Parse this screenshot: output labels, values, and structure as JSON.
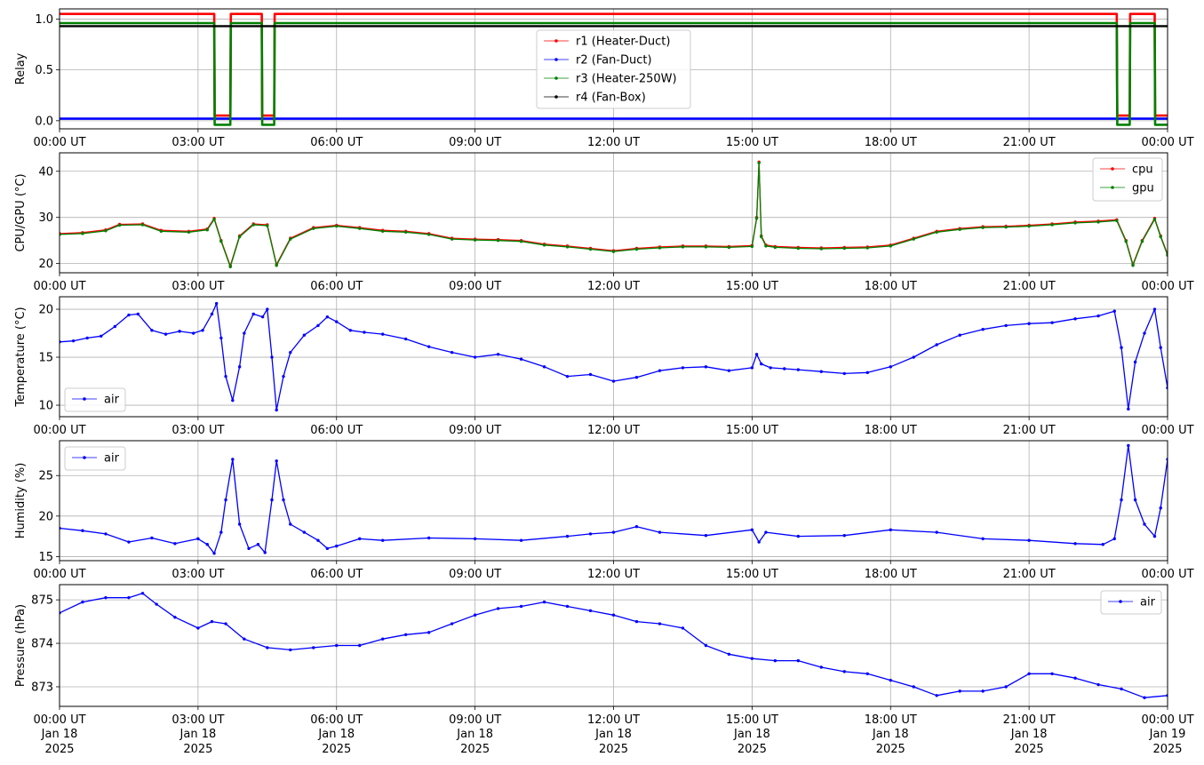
{
  "x_ticks": [
    "00:00 UT",
    "03:00 UT",
    "06:00 UT",
    "09:00 UT",
    "12:00 UT",
    "15:00 UT",
    "18:00 UT",
    "21:00 UT",
    "00:00 UT"
  ],
  "x_date_labels": [
    "Jan 18",
    "Jan 18",
    "Jan 18",
    "Jan 18",
    "Jan 18",
    "Jan 18",
    "Jan 18",
    "Jan 18",
    "Jan 19"
  ],
  "x_year_labels": [
    "2025",
    "2025",
    "2025",
    "2025",
    "2025",
    "2025",
    "2025",
    "2025",
    "2025"
  ],
  "chart_data": [
    {
      "type": "line",
      "ylabel": "Relay",
      "ylim": [
        -0.08,
        1.1
      ],
      "yticks": [
        0.0,
        0.5,
        1.0
      ],
      "ytick_labels": [
        "0.0",
        "0.5",
        "1.0"
      ],
      "xlim": [
        0,
        24
      ],
      "grid": true,
      "legend": "upper-center",
      "series": [
        {
          "name": "r1 (Heater-Duct)",
          "color": "#ff0000",
          "x": [
            0,
            3.35,
            3.36,
            3.7,
            3.71,
            4.38,
            4.39,
            4.65,
            4.66,
            22.9,
            22.91,
            23.18,
            23.19,
            23.72,
            23.73,
            24
          ],
          "y": [
            1.05,
            1.05,
            0.05,
            0.05,
            1.05,
            1.05,
            0.05,
            0.05,
            1.05,
            1.05,
            0.05,
            0.05,
            1.05,
            1.05,
            0.05,
            0.05
          ]
        },
        {
          "name": "r2 (Fan-Duct)",
          "color": "#0000ff",
          "x": [
            0,
            24
          ],
          "y": [
            0.02,
            0.02
          ]
        },
        {
          "name": "r3 (Heater-250W)",
          "color": "#008000",
          "x": [
            0,
            3.35,
            3.36,
            3.7,
            3.71,
            4.38,
            4.39,
            4.65,
            4.66,
            22.9,
            22.91,
            23.18,
            23.19,
            23.72,
            23.73,
            24
          ],
          "y": [
            0.96,
            0.96,
            -0.04,
            -0.04,
            0.96,
            0.96,
            -0.04,
            -0.04,
            0.96,
            0.96,
            -0.04,
            -0.04,
            0.96,
            0.96,
            -0.04,
            -0.04
          ]
        },
        {
          "name": "r4 (Fan-Box)",
          "color": "#000000",
          "x": [
            0,
            24
          ],
          "y": [
            0.93,
            0.93
          ]
        }
      ]
    },
    {
      "type": "line",
      "ylabel": "CPU/GPU (°C)",
      "ylim": [
        18,
        44
      ],
      "yticks": [
        20,
        30,
        40
      ],
      "ytick_labels": [
        "20",
        "30",
        "40"
      ],
      "xlim": [
        0,
        24
      ],
      "grid": true,
      "legend": "upper-right",
      "series": [
        {
          "name": "cpu",
          "color": "#ff0000",
          "x": [
            0,
            0.5,
            1.0,
            1.3,
            1.8,
            2.2,
            2.8,
            3.2,
            3.35,
            3.5,
            3.7,
            3.9,
            4.2,
            4.5,
            4.7,
            5.0,
            5.5,
            6.0,
            6.5,
            7.0,
            7.5,
            8.0,
            8.5,
            9.0,
            9.5,
            10.0,
            10.5,
            11.0,
            11.5,
            12.0,
            12.5,
            13.0,
            13.5,
            14.0,
            14.5,
            15.0,
            15.1,
            15.15,
            15.2,
            15.3,
            15.5,
            16.0,
            16.5,
            17.0,
            17.5,
            18.0,
            18.5,
            19.0,
            19.5,
            20.0,
            20.5,
            21.0,
            21.5,
            22.0,
            22.5,
            22.9,
            23.1,
            23.25,
            23.45,
            23.72,
            23.85,
            24
          ],
          "y": [
            26.5,
            26.7,
            27.3,
            28.5,
            28.6,
            27.2,
            27.0,
            27.5,
            29.8,
            25.0,
            19.5,
            26.0,
            28.6,
            28.4,
            19.8,
            25.5,
            27.8,
            28.3,
            27.8,
            27.2,
            27.0,
            26.5,
            25.5,
            25.3,
            25.2,
            25.0,
            24.2,
            23.8,
            23.3,
            22.8,
            23.3,
            23.6,
            23.8,
            23.8,
            23.7,
            23.9,
            30.0,
            42.0,
            26.0,
            24.0,
            23.7,
            23.5,
            23.4,
            23.5,
            23.6,
            24.0,
            25.5,
            27.0,
            27.6,
            28.0,
            28.1,
            28.3,
            28.6,
            29.0,
            29.2,
            29.5,
            25.0,
            19.8,
            25.0,
            29.8,
            26.0,
            22.0
          ]
        },
        {
          "name": "gpu",
          "color": "#008000",
          "x": [
            0,
            0.5,
            1.0,
            1.3,
            1.8,
            2.2,
            2.8,
            3.2,
            3.35,
            3.5,
            3.7,
            3.9,
            4.2,
            4.5,
            4.7,
            5.0,
            5.5,
            6.0,
            6.5,
            7.0,
            7.5,
            8.0,
            8.5,
            9.0,
            9.5,
            10.0,
            10.5,
            11.0,
            11.5,
            12.0,
            12.5,
            13.0,
            13.5,
            14.0,
            14.5,
            15.0,
            15.1,
            15.15,
            15.2,
            15.3,
            15.5,
            16.0,
            16.5,
            17.0,
            17.5,
            18.0,
            18.5,
            19.0,
            19.5,
            20.0,
            20.5,
            21.0,
            21.5,
            22.0,
            22.5,
            22.9,
            23.1,
            23.25,
            23.45,
            23.72,
            23.85,
            24
          ],
          "y": [
            26.3,
            26.5,
            27.1,
            28.3,
            28.4,
            27.0,
            26.8,
            27.3,
            29.6,
            24.8,
            19.3,
            25.8,
            28.4,
            28.2,
            19.6,
            25.3,
            27.6,
            28.1,
            27.6,
            27.0,
            26.8,
            26.3,
            25.3,
            25.1,
            25.0,
            24.8,
            24.0,
            23.6,
            23.1,
            22.6,
            23.1,
            23.4,
            23.6,
            23.6,
            23.5,
            23.7,
            29.8,
            41.8,
            25.8,
            23.8,
            23.5,
            23.3,
            23.2,
            23.3,
            23.4,
            23.8,
            25.3,
            26.8,
            27.4,
            27.8,
            27.9,
            28.1,
            28.4,
            28.8,
            29.0,
            29.3,
            24.8,
            19.6,
            24.8,
            29.6,
            25.8,
            21.8
          ]
        }
      ]
    },
    {
      "type": "line",
      "ylabel": "Temperature (°C)",
      "ylim": [
        8.8,
        21.3
      ],
      "yticks": [
        10,
        15,
        20
      ],
      "ytick_labels": [
        "10",
        "15",
        "20"
      ],
      "xlim": [
        0,
        24
      ],
      "grid": true,
      "legend": "lower-left",
      "series": [
        {
          "name": "air",
          "color": "#0000ff",
          "x": [
            0,
            0.3,
            0.6,
            0.9,
            1.2,
            1.5,
            1.7,
            2.0,
            2.3,
            2.6,
            2.9,
            3.1,
            3.3,
            3.4,
            3.5,
            3.6,
            3.75,
            3.9,
            4.0,
            4.2,
            4.4,
            4.5,
            4.6,
            4.7,
            4.85,
            5.0,
            5.3,
            5.6,
            5.8,
            6.0,
            6.3,
            6.6,
            7.0,
            7.5,
            8.0,
            8.5,
            9.0,
            9.5,
            10.0,
            10.5,
            11.0,
            11.5,
            12.0,
            12.5,
            13.0,
            13.5,
            14.0,
            14.5,
            15.0,
            15.1,
            15.2,
            15.4,
            15.7,
            16.0,
            16.5,
            17.0,
            17.5,
            18.0,
            18.5,
            19.0,
            19.5,
            20.0,
            20.5,
            21.0,
            21.5,
            22.0,
            22.5,
            22.85,
            23.0,
            23.15,
            23.3,
            23.5,
            23.72,
            23.85,
            24
          ],
          "y": [
            16.6,
            16.7,
            17.0,
            17.2,
            18.2,
            19.4,
            19.5,
            17.8,
            17.4,
            17.7,
            17.5,
            17.8,
            19.5,
            20.6,
            17.0,
            13.0,
            10.5,
            14.0,
            17.5,
            19.5,
            19.2,
            20.0,
            15.0,
            9.5,
            13.0,
            15.5,
            17.3,
            18.3,
            19.2,
            18.7,
            17.8,
            17.6,
            17.4,
            16.9,
            16.1,
            15.5,
            15.0,
            15.3,
            14.8,
            14.0,
            13.0,
            13.2,
            12.5,
            12.9,
            13.6,
            13.9,
            14.0,
            13.6,
            13.9,
            15.3,
            14.3,
            13.9,
            13.8,
            13.7,
            13.5,
            13.3,
            13.4,
            14.0,
            15.0,
            16.3,
            17.3,
            17.9,
            18.3,
            18.5,
            18.6,
            19.0,
            19.3,
            19.8,
            16.0,
            9.6,
            14.5,
            17.5,
            20.0,
            16.0,
            11.8
          ]
        }
      ]
    },
    {
      "type": "line",
      "ylabel": "Humidity (%)",
      "ylim": [
        14.5,
        29.3
      ],
      "yticks": [
        15,
        20,
        25
      ],
      "ytick_labels": [
        "15",
        "20",
        "25"
      ],
      "xlim": [
        0,
        24
      ],
      "grid": true,
      "legend": "upper-left",
      "series": [
        {
          "name": "air",
          "color": "#0000ff",
          "x": [
            0,
            0.5,
            1.0,
            1.5,
            2.0,
            2.5,
            3.0,
            3.2,
            3.35,
            3.5,
            3.6,
            3.75,
            3.9,
            4.1,
            4.3,
            4.45,
            4.6,
            4.7,
            4.85,
            5.0,
            5.3,
            5.6,
            5.8,
            6.0,
            6.5,
            7.0,
            8.0,
            9.0,
            10.0,
            11.0,
            11.5,
            12.0,
            12.5,
            13.0,
            14.0,
            15.0,
            15.15,
            15.3,
            16.0,
            17.0,
            18.0,
            19.0,
            20.0,
            21.0,
            22.0,
            22.6,
            22.85,
            23.0,
            23.15,
            23.3,
            23.5,
            23.72,
            23.85,
            24
          ],
          "y": [
            18.5,
            18.2,
            17.8,
            16.8,
            17.3,
            16.6,
            17.2,
            16.5,
            15.4,
            18.0,
            22.0,
            27.0,
            19.0,
            16.0,
            16.5,
            15.5,
            22.0,
            26.8,
            22.0,
            19.0,
            18.0,
            17.0,
            16.0,
            16.3,
            17.2,
            17.0,
            17.3,
            17.2,
            17.0,
            17.5,
            17.8,
            18.0,
            18.7,
            18.0,
            17.6,
            18.3,
            16.8,
            18.0,
            17.5,
            17.6,
            18.3,
            18.0,
            17.2,
            17.0,
            16.6,
            16.5,
            17.2,
            22.0,
            28.7,
            22.0,
            19.0,
            17.5,
            21.0,
            27.0
          ]
        }
      ]
    },
    {
      "type": "line",
      "ylabel": "Pressure (hPa)",
      "ylim": [
        872.55,
        875.35
      ],
      "yticks": [
        873,
        874,
        875
      ],
      "ytick_labels": [
        "873",
        "874",
        "875"
      ],
      "xlim": [
        0,
        24
      ],
      "grid": true,
      "legend": "upper-right",
      "series": [
        {
          "name": "air",
          "color": "#0000ff",
          "x": [
            0,
            0.5,
            1.0,
            1.5,
            1.8,
            2.1,
            2.5,
            3.0,
            3.3,
            3.6,
            4.0,
            4.5,
            5.0,
            5.5,
            6.0,
            6.5,
            7.0,
            7.5,
            8.0,
            8.5,
            9.0,
            9.5,
            10.0,
            10.5,
            11.0,
            11.5,
            12.0,
            12.5,
            13.0,
            13.5,
            14.0,
            14.5,
            15.0,
            15.5,
            16.0,
            16.5,
            17.0,
            17.5,
            18.0,
            18.5,
            19.0,
            19.5,
            20.0,
            20.5,
            21.0,
            21.5,
            22.0,
            22.5,
            23.0,
            23.5,
            24
          ],
          "y": [
            874.7,
            874.95,
            875.05,
            875.05,
            875.15,
            874.9,
            874.6,
            874.35,
            874.5,
            874.45,
            874.1,
            873.9,
            873.85,
            873.9,
            873.95,
            873.95,
            874.1,
            874.2,
            874.25,
            874.45,
            874.65,
            874.8,
            874.85,
            874.95,
            874.85,
            874.75,
            874.65,
            874.5,
            874.45,
            874.35,
            873.95,
            873.75,
            873.65,
            873.6,
            873.6,
            873.45,
            873.35,
            873.3,
            873.15,
            873.0,
            872.8,
            872.9,
            872.9,
            873.0,
            873.3,
            873.3,
            873.2,
            873.05,
            872.95,
            872.75,
            872.8
          ]
        }
      ]
    }
  ]
}
